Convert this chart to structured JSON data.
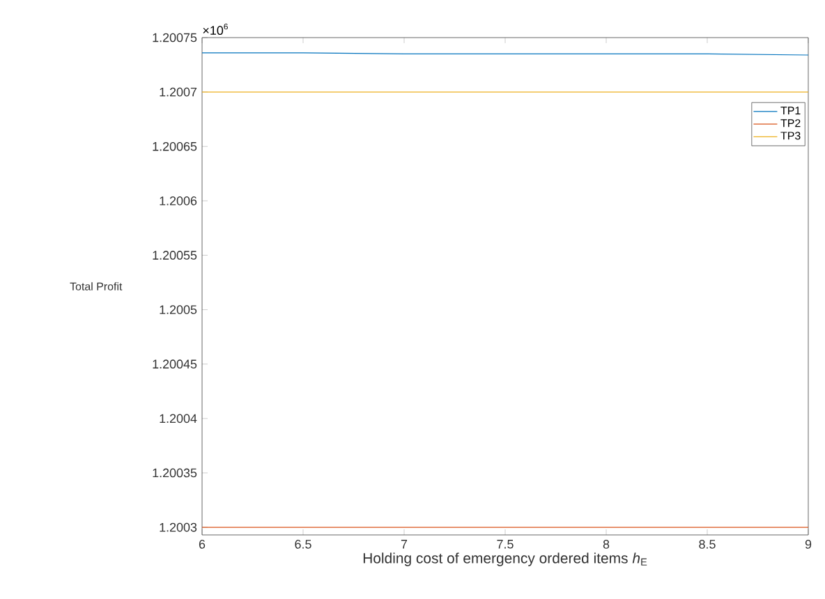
{
  "chart_data": {
    "type": "line",
    "xlabel": "Holding cost of emergency ordered items *h*$_{E}$",
    "ylabel": "Total Profit",
    "annotations": [
      "×10$^{6}$"
    ],
    "x": [
      6,
      6.5,
      7,
      7.5,
      8,
      8.5,
      9
    ],
    "series": [
      {
        "name": "TP1",
        "color": "#0072bd",
        "values": [
          1.200736,
          1.200736,
          1.200735,
          1.200735,
          1.200735,
          1.200735,
          1.200734
        ]
      },
      {
        "name": "TP2",
        "color": "#d95319",
        "values": [
          1.2003,
          1.2003,
          1.2003,
          1.2003,
          1.2003,
          1.2003,
          1.2003
        ]
      },
      {
        "name": "TP3",
        "color": "#edb120",
        "values": [
          1.2007,
          1.2007,
          1.2007,
          1.2007,
          1.2007,
          1.2007,
          1.2007
        ]
      }
    ],
    "xlim": [
      6,
      9
    ],
    "xticks": [
      6,
      6.5,
      7,
      7.5,
      8,
      8.5,
      9
    ],
    "ylim": [
      1.200293,
      1.20075
    ],
    "yticks": [
      1.2003,
      1.20035,
      1.2004,
      1.20045,
      1.2005,
      1.20055,
      1.2006,
      1.20065,
      1.2007,
      1.20075
    ],
    "legend": "top right"
  }
}
